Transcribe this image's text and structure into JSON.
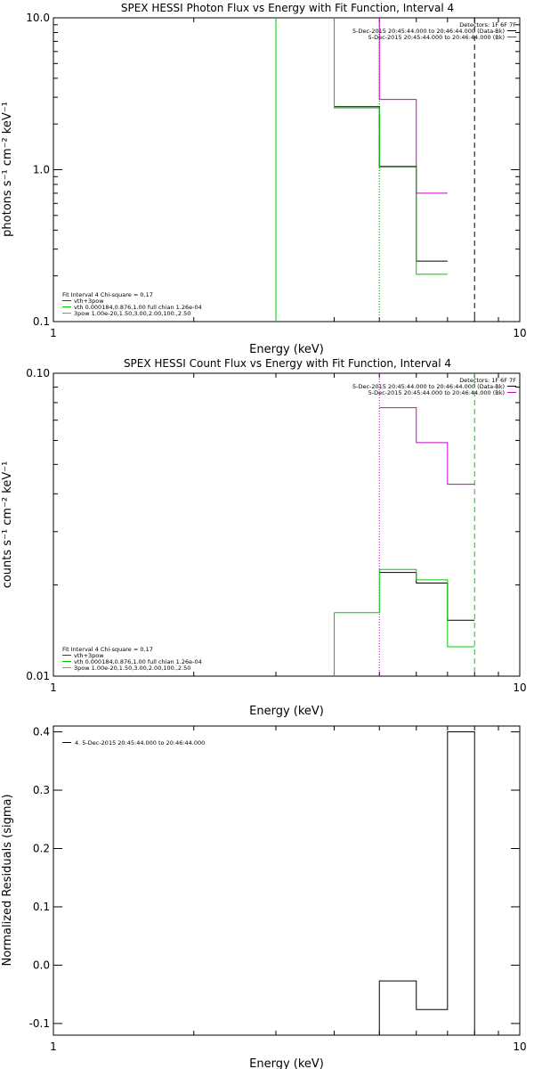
{
  "colors": {
    "black": "#000000",
    "magenta": "#cc00cc",
    "green": "#00cc00",
    "red": "#cc0000",
    "orange": "#cc8800"
  },
  "chart_data": [
    {
      "type": "line",
      "title": "SPEX HESSI Photon Flux vs Energy with Fit Function, Interval 4",
      "xlabel": "Energy (keV)",
      "ylabel": "photons s⁻¹ cm⁻² keV⁻¹",
      "xscale": "log",
      "yscale": "log",
      "xlim": [
        1,
        10
      ],
      "ylim": [
        0.1,
        10
      ],
      "xticklabels": [
        {
          "v": 1,
          "t": "1"
        },
        {
          "v": 10,
          "t": "10"
        }
      ],
      "yticklabels": [
        {
          "v": 0.1,
          "t": "0.1"
        },
        {
          "v": 1,
          "t": "1.0"
        },
        {
          "v": 10,
          "t": "10.0"
        }
      ],
      "yminor": [
        0.2,
        0.3,
        0.4,
        0.5,
        0.6,
        0.7,
        0.8,
        0.9,
        2,
        3,
        4,
        5,
        6,
        7,
        8,
        9
      ],
      "xminor": [
        2,
        3,
        4,
        5,
        6,
        7,
        8,
        9
      ],
      "edges": [
        3,
        4,
        5,
        6,
        7,
        8
      ],
      "series": [
        {
          "color": "magenta",
          "values": [
            null,
            10.5,
            2.9,
            0.7
          ]
        },
        {
          "color": "black",
          "values": [
            null,
            2.6,
            1.05,
            0.25
          ]
        },
        {
          "color": "green",
          "values": [
            12,
            2.55,
            1.04,
            0.205
          ]
        }
      ],
      "vlines": [
        {
          "x": 5.0,
          "color": "magenta",
          "dash": "1,2"
        },
        {
          "x": 5.0,
          "color": "green",
          "dash": "1,2"
        },
        {
          "x": 8.0,
          "color": "black",
          "dash": "6,4"
        },
        {
          "x": 3.0,
          "color": "green",
          "dash": ""
        }
      ],
      "legend_tr": {
        "header": "Detectors: 1F 6F 7F",
        "lines": [
          {
            "text": "5-Dec-2015 20:45:44.000 to 20:46:44.000 (Data-Bk)",
            "color": "black"
          },
          {
            "text": "5-Dec-2015 20:45:44.000 to 20:46:44.000 (Bk)",
            "color": "magenta"
          }
        ]
      },
      "legend_bl": {
        "header": "Fit Interval 4   Chi-square = 0.17",
        "lines": [
          {
            "text": "vth+3pow",
            "color": "red"
          },
          {
            "text": "vth 0.000184,0.876,1.00  full chian 1.26e-04",
            "color": "green"
          },
          {
            "text": "3pow 1.00e-20,1.50,3.00,2.00,100.,2.50",
            "color": "orange"
          }
        ]
      }
    },
    {
      "type": "line",
      "title": "SPEX HESSI Count Flux vs Energy with Fit Function, Interval 4",
      "xlabel": "Energy (keV)",
      "ylabel": "counts s⁻¹ cm⁻² keV⁻¹",
      "xscale": "log",
      "yscale": "log",
      "xlim": [
        1,
        10
      ],
      "ylim": [
        0.01,
        0.1
      ],
      "xticklabels": [
        {
          "v": 1,
          "t": "1"
        },
        {
          "v": 10,
          "t": "10"
        }
      ],
      "yticklabels": [
        {
          "v": 0.01,
          "t": "0.01"
        },
        {
          "v": 0.1,
          "t": "0.10"
        }
      ],
      "yminor": [
        0.02,
        0.03,
        0.04,
        0.05,
        0.06,
        0.07,
        0.08,
        0.09
      ],
      "xminor": [
        2,
        3,
        4,
        5,
        6,
        7,
        8,
        9
      ],
      "edges": [
        4,
        5,
        6,
        7,
        8
      ],
      "series": [
        {
          "color": "magenta",
          "values": [
            null,
            0.077,
            0.059,
            0.043
          ]
        },
        {
          "color": "black",
          "values": [
            null,
            0.022,
            0.0203,
            0.0153
          ]
        },
        {
          "color": "green",
          "values": [
            0.0162,
            0.0225,
            0.0208,
            0.0125
          ]
        }
      ],
      "vlines": [
        {
          "x": 5.0,
          "color": "magenta",
          "dash": "1,2"
        },
        {
          "x": 8.0,
          "color": "green",
          "dash": "6,4"
        },
        {
          "x": 4.0,
          "color": "green",
          "dash": "",
          "ymax": 0.0162
        }
      ],
      "legend_tr": {
        "header": "Detectors: 1F 6F 7F",
        "lines": [
          {
            "text": "5-Dec-2015 20:45:44.000 to 20:46:44.000 (Data-Bk)",
            "color": "black"
          },
          {
            "text": "5-Dec-2015 20:45:44.000 to 20:46:44.000 (Bk)",
            "color": "magenta"
          }
        ]
      },
      "legend_bl": {
        "header": "Fit Interval 4   Chi-square = 0.17",
        "lines": [
          {
            "text": "vth+3pow",
            "color": "red"
          },
          {
            "text": "vth 0.000184,0.876,1.00  full chian 1.26e-04",
            "color": "green"
          },
          {
            "text": "3pow 1.00e-20,1.50,3.00,2.00,100.,2.50",
            "color": "orange"
          }
        ]
      }
    },
    {
      "type": "line",
      "title": "",
      "xlabel": "Energy (keV)",
      "ylabel": "Normalized Residuals (sigma)",
      "xscale": "log",
      "yscale": "linear",
      "xlim": [
        1,
        10
      ],
      "ylim": [
        -0.12,
        0.41
      ],
      "xticklabels": [
        {
          "v": 1,
          "t": "1"
        },
        {
          "v": 10,
          "t": "10"
        }
      ],
      "yticklabels": [
        {
          "v": -0.1,
          "t": "-0.1"
        },
        {
          "v": 0.0,
          "t": "0.0"
        },
        {
          "v": 0.1,
          "t": "0.1"
        },
        {
          "v": 0.2,
          "t": "0.2"
        },
        {
          "v": 0.3,
          "t": "0.3"
        },
        {
          "v": 0.4,
          "t": "0.4"
        }
      ],
      "yminor": [],
      "xminor": [
        2,
        3,
        4,
        5,
        6,
        7,
        8,
        9
      ],
      "edges": [
        5,
        6,
        7,
        8
      ],
      "baseline": -0.12,
      "series": [
        {
          "color": "black",
          "values": [
            -0.027,
            -0.076,
            0.4
          ]
        }
      ],
      "vlines": [],
      "legend_tl": {
        "lines": [
          {
            "text": "4.  5-Dec-2015 20:45:44.000 to 20:46:44.000",
            "color": "black"
          }
        ]
      }
    }
  ]
}
